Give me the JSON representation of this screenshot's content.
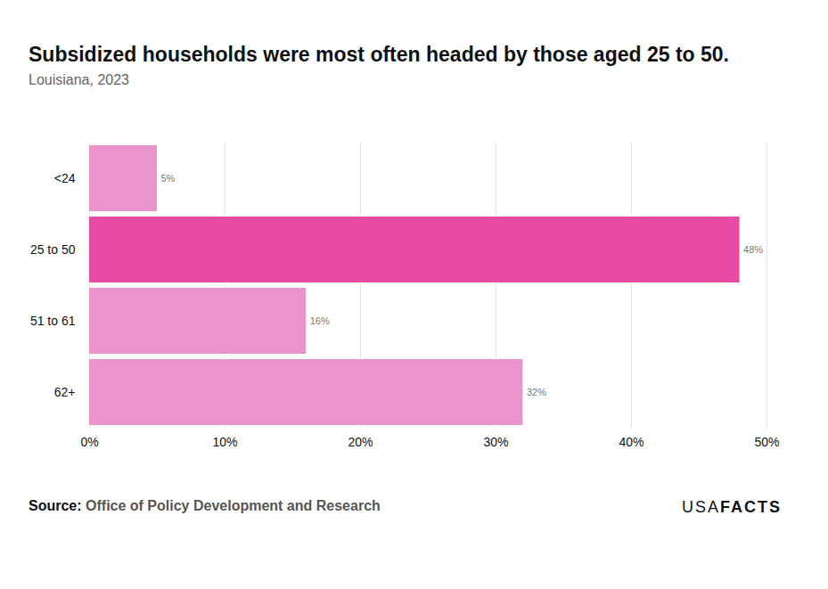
{
  "chart_data": {
    "type": "bar",
    "orientation": "horizontal",
    "title": "Subsidized households were most often headed by those aged 25 to 50.",
    "subtitle": "Louisiana, 2023",
    "source_label": "Source:",
    "source": "Office of Policy Development and Research",
    "logo": [
      "USA",
      "FACTS"
    ],
    "categories": [
      "<24",
      "25 to 50",
      "51 to 61",
      "62+"
    ],
    "values": [
      5,
      48,
      16,
      32
    ],
    "value_labels": [
      "5%",
      "48%",
      "16%",
      "32%"
    ],
    "colors": [
      "#eb93cd",
      "#e84ba3",
      "#eb93cd",
      "#eb93cd"
    ],
    "xlim": [
      0,
      50
    ],
    "xticks": [
      {
        "value": 0,
        "label": "0%"
      },
      {
        "value": 10,
        "label": "10%"
      },
      {
        "value": 20,
        "label": "20%"
      },
      {
        "value": 30,
        "label": "30%"
      },
      {
        "value": 40,
        "label": "40%"
      },
      {
        "value": 50,
        "label": "50%"
      }
    ],
    "grid": true,
    "data_labels": true
  }
}
